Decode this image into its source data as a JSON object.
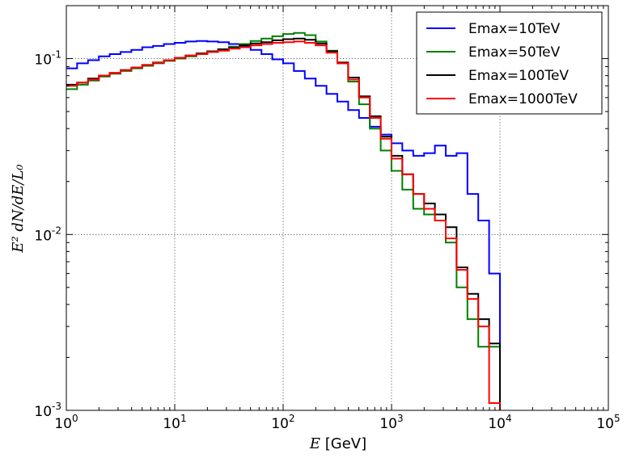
{
  "chart_data": {
    "type": "line",
    "drawstyle": "steps",
    "xscale": "log",
    "yscale": "log",
    "xlim": [
      1,
      100000
    ],
    "ylim": [
      0.001,
      0.2
    ],
    "grid": true,
    "legend_position": "top-right",
    "xlabel": {
      "symbol": "E",
      "unit": "[GeV]"
    },
    "ylabel": "E² dN/dE/L₀",
    "x_tick_labels": [
      {
        "base": "10",
        "exp": "0"
      },
      {
        "base": "10",
        "exp": "1"
      },
      {
        "base": "10",
        "exp": "2"
      },
      {
        "base": "10",
        "exp": "3"
      },
      {
        "base": "10",
        "exp": "4"
      },
      {
        "base": "10",
        "exp": "5"
      }
    ],
    "y_tick_labels": [
      {
        "base": "10",
        "exp": "-3"
      },
      {
        "base": "10",
        "exp": "-2"
      },
      {
        "base": "10",
        "exp": "-1"
      }
    ],
    "x_ticks": [
      1,
      10,
      100,
      1000,
      10000,
      100000
    ],
    "y_ticks": [
      0.001,
      0.01,
      0.1
    ],
    "series": [
      {
        "name": "Emax=10TeV",
        "color": "#0000ff",
        "x": [
          1.12,
          1.41,
          1.78,
          2.24,
          2.82,
          3.55,
          4.47,
          5.62,
          7.08,
          8.91,
          11.2,
          14.1,
          17.8,
          22.4,
          28.2,
          35.5,
          44.7,
          56.2,
          70.8,
          89.1,
          112,
          141,
          178,
          224,
          282,
          355,
          447,
          562,
          708,
          891,
          1120,
          1410,
          1780,
          2240,
          2820,
          3550,
          4470,
          5620,
          7080,
          8910
        ],
        "y": [
          0.088,
          0.094,
          0.098,
          0.103,
          0.106,
          0.109,
          0.112,
          0.116,
          0.118,
          0.121,
          0.123,
          0.125,
          0.126,
          0.125,
          0.124,
          0.121,
          0.117,
          0.112,
          0.106,
          0.099,
          0.094,
          0.085,
          0.077,
          0.07,
          0.063,
          0.057,
          0.051,
          0.046,
          0.041,
          0.037,
          0.033,
          0.03,
          0.028,
          0.029,
          0.032,
          0.028,
          0.029,
          0.017,
          0.012,
          0.006
        ]
      },
      {
        "name": "Emax=50TeV",
        "color": "#008000",
        "x": [
          1.12,
          1.41,
          1.78,
          2.24,
          2.82,
          3.55,
          4.47,
          5.62,
          7.08,
          8.91,
          11.2,
          14.1,
          17.8,
          22.4,
          28.2,
          35.5,
          44.7,
          56.2,
          70.8,
          89.1,
          112,
          141,
          178,
          224,
          282,
          355,
          447,
          562,
          708,
          891,
          1120,
          1410,
          1780,
          2240,
          2820,
          3550,
          4470,
          5620,
          7080,
          8910
        ],
        "y": [
          0.067,
          0.071,
          0.075,
          0.079,
          0.082,
          0.085,
          0.088,
          0.091,
          0.094,
          0.097,
          0.1,
          0.103,
          0.106,
          0.109,
          0.113,
          0.117,
          0.121,
          0.126,
          0.13,
          0.134,
          0.138,
          0.14,
          0.136,
          0.125,
          0.111,
          0.094,
          0.074,
          0.055,
          0.04,
          0.03,
          0.023,
          0.018,
          0.014,
          0.013,
          0.012,
          0.009,
          0.005,
          0.0033,
          0.0023,
          0.0023
        ]
      },
      {
        "name": "Emax=100TeV",
        "color": "#000000",
        "x": [
          1.12,
          1.41,
          1.78,
          2.24,
          2.82,
          3.55,
          4.47,
          5.62,
          7.08,
          8.91,
          11.2,
          14.1,
          17.8,
          22.4,
          28.2,
          35.5,
          44.7,
          56.2,
          70.8,
          89.1,
          112,
          141,
          178,
          224,
          282,
          355,
          447,
          562,
          708,
          891,
          1120,
          1410,
          1780,
          2240,
          2820,
          3550,
          4470,
          5620,
          7080,
          8910
        ],
        "y": [
          0.071,
          0.073,
          0.077,
          0.08,
          0.083,
          0.086,
          0.089,
          0.092,
          0.095,
          0.098,
          0.101,
          0.104,
          0.107,
          0.11,
          0.113,
          0.115,
          0.119,
          0.122,
          0.124,
          0.127,
          0.129,
          0.13,
          0.128,
          0.122,
          0.11,
          0.095,
          0.078,
          0.061,
          0.047,
          0.036,
          0.028,
          0.022,
          0.017,
          0.015,
          0.013,
          0.011,
          0.0065,
          0.0046,
          0.0033,
          0.0024
        ]
      },
      {
        "name": "Emax=1000TeV",
        "color": "#ff0000",
        "x": [
          1.12,
          1.41,
          1.78,
          2.24,
          2.82,
          3.55,
          4.47,
          5.62,
          7.08,
          8.91,
          11.2,
          14.1,
          17.8,
          22.4,
          28.2,
          35.5,
          44.7,
          56.2,
          70.8,
          89.1,
          112,
          141,
          178,
          224,
          282,
          355,
          447,
          562,
          708,
          891,
          1120,
          1410,
          1780,
          2240,
          2820,
          3550,
          4470,
          5620,
          7080,
          8910
        ],
        "y": [
          0.07,
          0.073,
          0.076,
          0.08,
          0.083,
          0.086,
          0.089,
          0.092,
          0.095,
          0.098,
          0.101,
          0.104,
          0.106,
          0.109,
          0.111,
          0.114,
          0.116,
          0.119,
          0.121,
          0.123,
          0.124,
          0.125,
          0.123,
          0.119,
          0.108,
          0.094,
          0.076,
          0.06,
          0.046,
          0.035,
          0.027,
          0.022,
          0.017,
          0.014,
          0.012,
          0.0095,
          0.0063,
          0.0043,
          0.003,
          0.0011
        ]
      }
    ]
  }
}
